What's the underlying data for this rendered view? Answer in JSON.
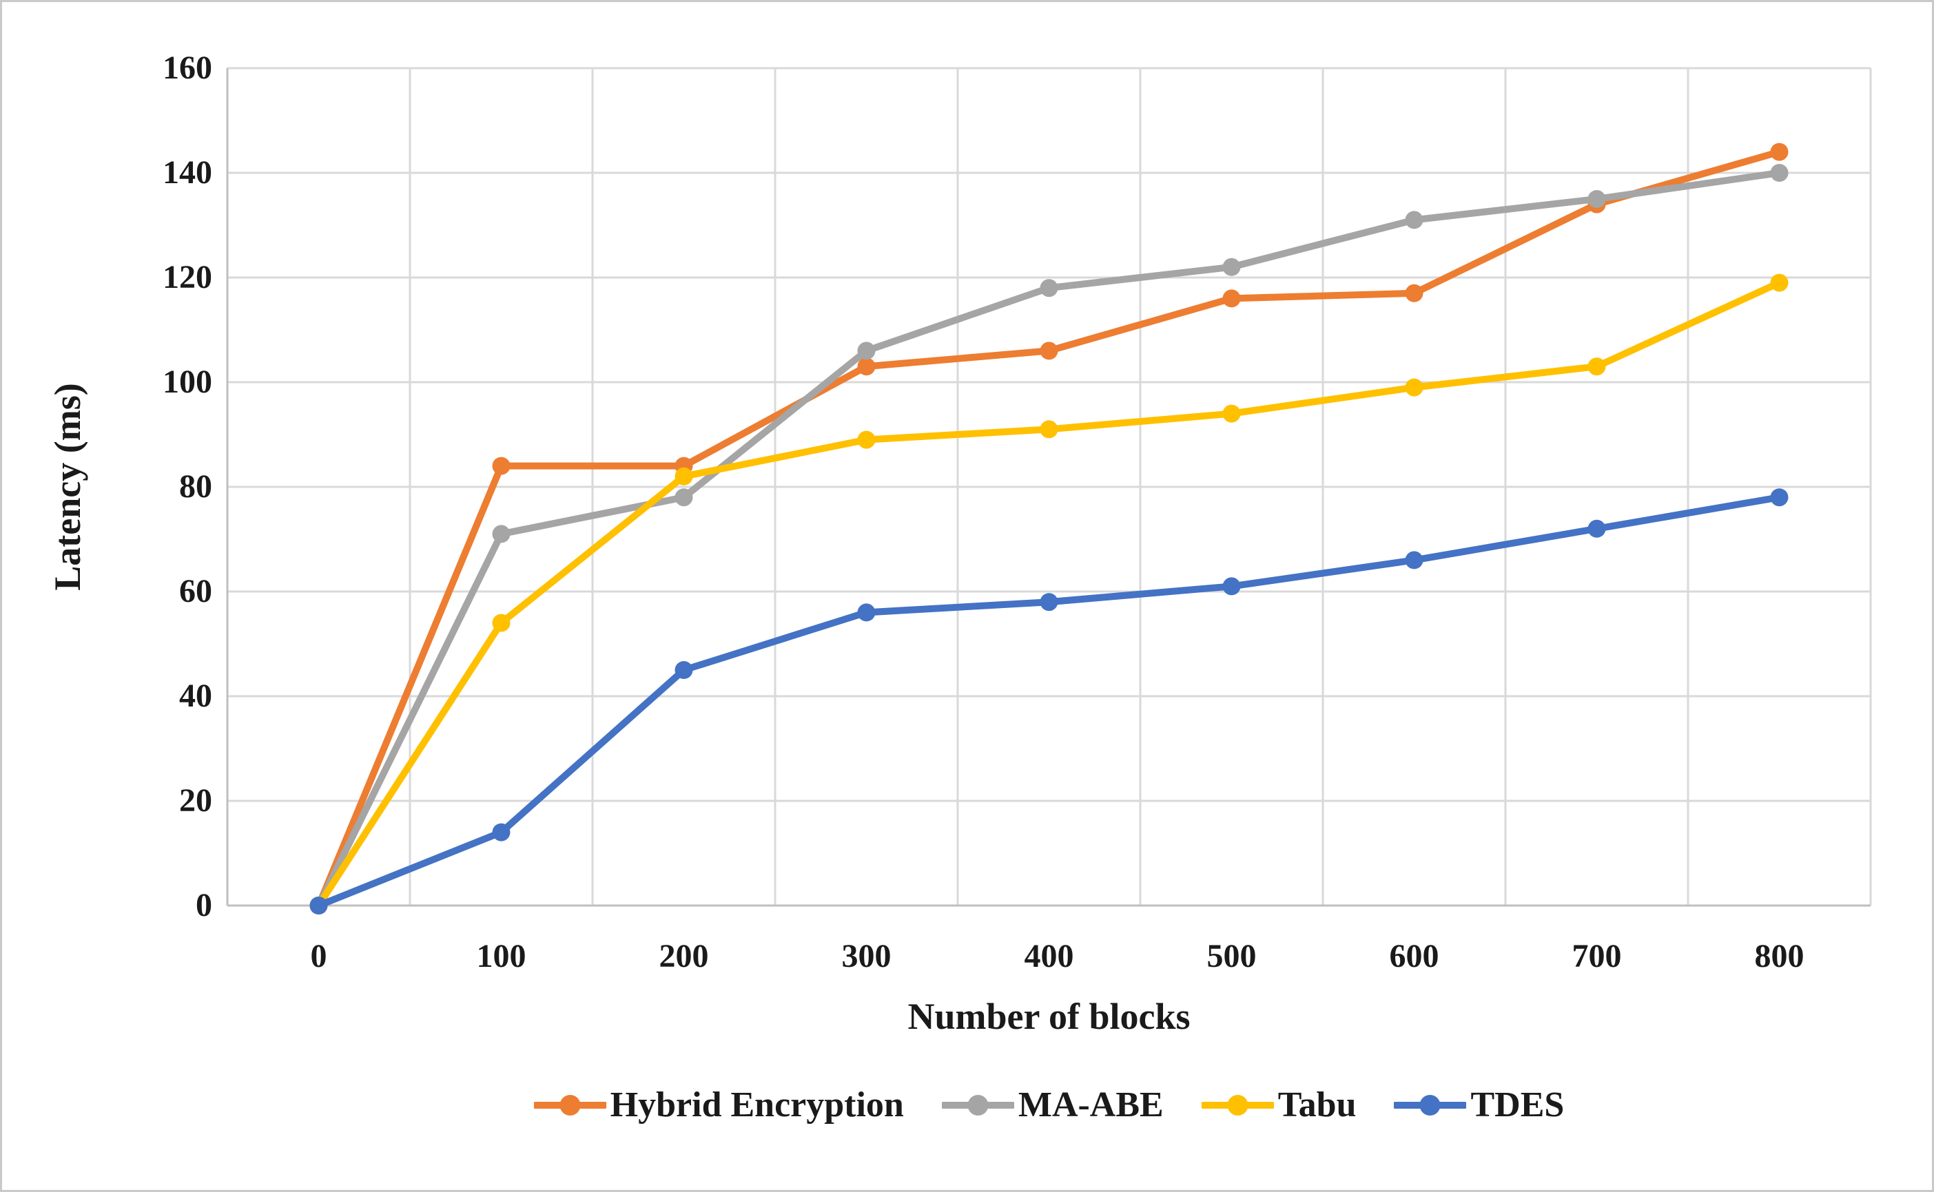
{
  "chart_data": {
    "type": "line",
    "title": "",
    "xlabel": "Number of blocks",
    "ylabel": "Latency (ms)",
    "x": [
      0,
      100,
      200,
      300,
      400,
      500,
      600,
      700,
      800
    ],
    "x_tick_labels": [
      "0",
      "100",
      "200",
      "300",
      "400",
      "500",
      "600",
      "700",
      "800"
    ],
    "y_tick_labels": [
      "0",
      "20",
      "40",
      "60",
      "80",
      "100",
      "120",
      "140",
      "160"
    ],
    "ylim": [
      0,
      160
    ],
    "ytick_step": 20,
    "grid": true,
    "legend_position": "bottom",
    "series": [
      {
        "name": "Hybrid Encryption",
        "color": "#ED7D31",
        "values": [
          0,
          84,
          84,
          103,
          106,
          116,
          117,
          134,
          144
        ]
      },
      {
        "name": "MA-ABE",
        "color": "#A5A5A5",
        "values": [
          0,
          71,
          78,
          106,
          118,
          122,
          131,
          135,
          140
        ]
      },
      {
        "name": "Tabu",
        "color": "#FFC000",
        "values": [
          0,
          54,
          82,
          89,
          91,
          94,
          99,
          103,
          119
        ]
      },
      {
        "name": "TDES",
        "color": "#4472C4",
        "values": [
          0,
          14,
          45,
          56,
          58,
          61,
          66,
          72,
          78
        ]
      }
    ],
    "style": {
      "gridline_color": "#d9d9d9",
      "axis_color": "#bfbfbf",
      "background": "#ffffff",
      "line_width": 10,
      "marker_radius": 13
    }
  }
}
